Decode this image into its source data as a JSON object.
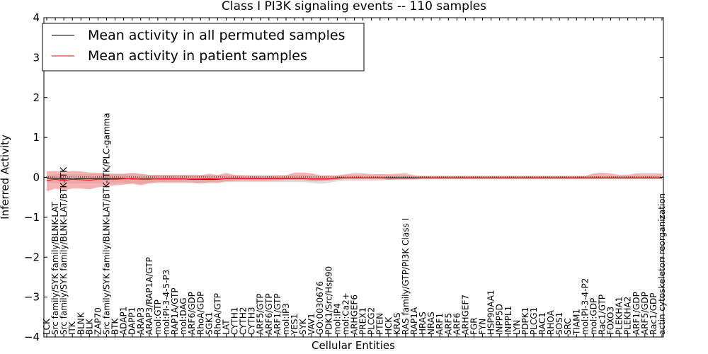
{
  "chart_data": {
    "type": "line",
    "title": "Class I PI3K signaling events -- 110 samples",
    "xlabel": "Cellular Entities",
    "ylabel": "Inferred Activity",
    "ylim": [
      -4,
      4
    ],
    "yticks": [
      4,
      3,
      2,
      1,
      0,
      -1,
      -2,
      -3,
      -4
    ],
    "ytick_labels": [
      "4",
      "3",
      "2",
      "1",
      "0",
      "−1",
      "−2",
      "−3",
      "−4"
    ],
    "legend_position": "top-left",
    "colors": {
      "permuted": "#000000",
      "patient": "#ff0000",
      "permuted_band": "#d3d3d3",
      "patient_band": "#f08080"
    },
    "categories": [
      "LCK",
      "Src family/SYK family/BLNK-LAT",
      "Src family/SYK family/BLNK-LAT/BTK-ITK",
      "ITK",
      "BLNK",
      "BLK",
      "ZAP70",
      "Src family/SYK family/BLNK-LAT/BTK-ITK/PLC-gamma",
      "BTK",
      "ADAP1",
      "DAPP1",
      "ARAP3",
      "ARAP3/RAP1A/GTP",
      "mol:GTP",
      "mol:PI-3-4-5-P3",
      "RAP1A/GTP",
      "mol:DAG",
      "ARF6/GDP",
      "RhoA/GDP",
      "SGK1",
      "RhoA/GTP",
      "LAT",
      "CYTH1",
      "CYTH2",
      "CYTH3",
      "ARF5/GTP",
      "ARF6/GTP",
      "ARF1/GTP",
      "mol:IP3",
      "YES1",
      "SYK",
      "VAV1",
      "GO:0030676",
      "PDK1/Src/Hsp90",
      "mol:IP4",
      "mol:Ca2+",
      "ARHGEF6",
      "PREX1",
      "PLCG2",
      "PTEN",
      "HCK",
      "KRAS",
      "RAS family/GTP/PI3K Class I",
      "RAP1A",
      "HRAS",
      "NRAS",
      "ARF1",
      "ARF5",
      "ARF6",
      "ARHGEF7",
      "FGR",
      "FYN",
      "HSP90AA1",
      "INPP5D",
      "INPPL1",
      "LYN",
      "PDPK1",
      "PLCG1",
      "RAC1",
      "RHOA",
      "SOS1",
      "SRC",
      "TIAM1",
      "mol:PI-3-4-P2",
      "mol:GDP",
      "Rac1/GTP",
      "FOXO3",
      "PLEKHA1",
      "PLEKHA2",
      "ARF1/GDP",
      "ARF5/GDP",
      "Rac1/GDP",
      "actin cytoskeleton reorganization"
    ],
    "series": [
      {
        "name": "Mean activity in all permuted samples",
        "color": "#000000",
        "values": [
          -0.02,
          -0.03,
          -0.03,
          -0.04,
          -0.03,
          -0.03,
          -0.03,
          -0.03,
          -0.03,
          -0.03,
          -0.04,
          -0.04,
          -0.04,
          -0.04,
          -0.04,
          -0.04,
          -0.04,
          -0.05,
          -0.05,
          -0.05,
          -0.05,
          -0.03,
          -0.03,
          -0.03,
          -0.03,
          -0.03,
          -0.03,
          -0.03,
          -0.03,
          -0.03,
          -0.03,
          -0.04,
          -0.04,
          -0.04,
          -0.01,
          -0.01,
          -0.01,
          -0.01,
          -0.01,
          -0.01,
          -0.01,
          -0.01,
          -0.01,
          -0.01,
          -0.01,
          -0.01,
          -0.01,
          -0.01,
          -0.01,
          -0.01,
          -0.01,
          -0.01,
          -0.01,
          -0.01,
          -0.01,
          -0.01,
          -0.01,
          -0.01,
          -0.01,
          -0.01,
          -0.01,
          -0.01,
          -0.01,
          -0.01,
          -0.01,
          -0.01,
          -0.01,
          -0.01,
          -0.01,
          -0.01,
          -0.01,
          -0.01,
          -0.01
        ],
        "band_low": [
          -0.12,
          -0.15,
          -0.15,
          -0.16,
          -0.15,
          -0.15,
          -0.15,
          -0.15,
          -0.15,
          -0.15,
          -0.15,
          -0.15,
          -0.15,
          -0.15,
          -0.15,
          -0.15,
          -0.15,
          -0.15,
          -0.15,
          -0.15,
          -0.15,
          -0.12,
          -0.12,
          -0.12,
          -0.12,
          -0.12,
          -0.12,
          -0.12,
          -0.12,
          -0.12,
          -0.12,
          -0.14,
          -0.16,
          -0.14,
          -0.1,
          -0.09,
          -0.09,
          -0.09,
          -0.09,
          -0.08,
          -0.07,
          -0.07,
          -0.06,
          -0.06,
          -0.05,
          -0.05,
          -0.05,
          -0.05,
          -0.05,
          -0.05,
          -0.05,
          -0.05,
          -0.05,
          -0.05,
          -0.05,
          -0.05,
          -0.05,
          -0.05,
          -0.05,
          -0.05,
          -0.05,
          -0.05,
          -0.05,
          -0.05,
          -0.05,
          -0.05,
          -0.05,
          -0.05,
          -0.05,
          -0.05,
          -0.05,
          -0.05,
          -0.05
        ],
        "band_high": [
          0.06,
          0.08,
          0.08,
          0.08,
          0.08,
          0.08,
          0.08,
          0.08,
          0.08,
          0.08,
          0.07,
          0.07,
          0.07,
          0.07,
          0.07,
          0.07,
          0.07,
          0.06,
          0.06,
          0.06,
          0.06,
          0.06,
          0.06,
          0.06,
          0.06,
          0.06,
          0.06,
          0.06,
          0.06,
          0.06,
          0.06,
          0.05,
          0.05,
          0.05,
          0.05,
          0.05,
          0.05,
          0.05,
          0.05,
          0.05,
          0.05,
          0.05,
          0.04,
          0.04,
          0.03,
          0.03,
          0.03,
          0.03,
          0.03,
          0.03,
          0.03,
          0.03,
          0.03,
          0.03,
          0.03,
          0.03,
          0.03,
          0.03,
          0.03,
          0.03,
          0.03,
          0.03,
          0.03,
          0.03,
          0.03,
          0.03,
          0.03,
          0.03,
          0.03,
          0.03,
          0.03,
          0.03,
          0.03
        ]
      },
      {
        "name": "Mean activity in patient samples",
        "color": "#ff0000",
        "values": [
          -0.08,
          -0.05,
          -0.08,
          -0.05,
          -0.06,
          -0.07,
          -0.05,
          -0.05,
          -0.05,
          -0.04,
          -0.03,
          -0.05,
          -0.05,
          -0.04,
          -0.04,
          -0.04,
          -0.04,
          -0.04,
          -0.04,
          -0.03,
          -0.04,
          -0.03,
          -0.03,
          -0.03,
          -0.03,
          -0.03,
          -0.03,
          -0.03,
          -0.03,
          -0.03,
          -0.03,
          -0.04,
          -0.04,
          -0.04,
          -0.02,
          -0.01,
          -0.01,
          -0.01,
          -0.01,
          -0.01,
          -0.02,
          -0.02,
          -0.02,
          -0.02,
          -0.01,
          -0.01,
          -0.01,
          -0.01,
          -0.01,
          -0.01,
          -0.01,
          -0.01,
          -0.01,
          -0.01,
          -0.01,
          -0.01,
          -0.01,
          -0.01,
          -0.01,
          -0.01,
          -0.01,
          -0.01,
          -0.01,
          -0.01,
          -0.01,
          -0.01,
          -0.01,
          -0.01,
          -0.01,
          -0.01,
          -0.01,
          -0.01,
          -0.01
        ],
        "band_low": [
          -0.35,
          -0.28,
          -0.32,
          -0.28,
          -0.28,
          -0.3,
          -0.25,
          -0.22,
          -0.2,
          -0.18,
          -0.16,
          -0.2,
          -0.15,
          -0.12,
          -0.12,
          -0.12,
          -0.12,
          -0.13,
          -0.15,
          -0.12,
          -0.13,
          -0.1,
          -0.09,
          -0.08,
          -0.08,
          -0.08,
          -0.08,
          -0.08,
          -0.07,
          -0.07,
          -0.07,
          -0.1,
          -0.1,
          -0.08,
          -0.06,
          -0.04,
          -0.04,
          -0.04,
          -0.04,
          -0.04,
          -0.06,
          -0.05,
          -0.05,
          -0.05,
          -0.04,
          -0.04,
          -0.04,
          -0.04,
          -0.04,
          -0.04,
          -0.04,
          -0.04,
          -0.04,
          -0.04,
          -0.04,
          -0.04,
          -0.04,
          -0.04,
          -0.04,
          -0.04,
          -0.04,
          -0.04,
          -0.04,
          -0.04,
          -0.04,
          -0.04,
          -0.04,
          -0.04,
          -0.04,
          -0.04,
          -0.04,
          -0.04,
          -0.04
        ],
        "band_high": [
          0.15,
          0.16,
          0.14,
          0.16,
          0.15,
          0.12,
          0.12,
          0.1,
          0.09,
          0.09,
          0.12,
          0.09,
          0.06,
          0.06,
          0.06,
          0.06,
          0.06,
          0.06,
          0.06,
          0.09,
          0.06,
          0.11,
          0.06,
          0.05,
          0.04,
          0.04,
          0.04,
          0.05,
          0.05,
          0.12,
          0.12,
          0.1,
          0.05,
          0.05,
          0.05,
          0.08,
          0.1,
          0.1,
          0.08,
          0.08,
          0.08,
          0.09,
          0.1,
          0.05,
          0.04,
          0.04,
          0.04,
          0.04,
          0.04,
          0.04,
          0.04,
          0.04,
          0.04,
          0.04,
          0.04,
          0.04,
          0.04,
          0.04,
          0.04,
          0.04,
          0.04,
          0.04,
          0.04,
          0.04,
          0.1,
          0.12,
          0.1,
          0.06,
          0.06,
          0.1,
          0.1,
          0.1,
          0.1
        ]
      }
    ]
  }
}
